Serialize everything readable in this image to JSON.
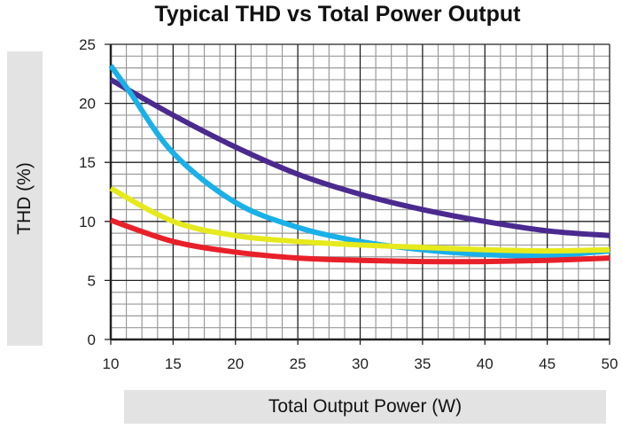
{
  "chart_data": {
    "type": "line",
    "title": "Typical THD vs Total Power Output",
    "xlabel": "Total Output Power (W)",
    "ylabel": "THD (%)",
    "xlim": [
      10,
      50
    ],
    "ylim": [
      0,
      25
    ],
    "xticks": [
      10,
      15,
      20,
      25,
      30,
      35,
      40,
      45,
      50
    ],
    "yticks": [
      0,
      5,
      10,
      15,
      20,
      25
    ],
    "grid": true,
    "legend": "none",
    "series": [
      {
        "color": "#4b2a8f",
        "x": [
          10,
          15,
          20,
          25,
          30,
          35,
          40,
          45,
          50
        ],
        "y": [
          22,
          19,
          16.3,
          14,
          12.3,
          11,
          10,
          9.2,
          8.8
        ]
      },
      {
        "color": "#1ab0e8",
        "x": [
          10,
          11.5,
          15,
          20,
          25,
          30,
          35,
          40,
          45,
          50
        ],
        "y": [
          23.2,
          21,
          15.8,
          11.6,
          9.5,
          8.3,
          7.6,
          7.2,
          7.1,
          7.5
        ]
      },
      {
        "color": "#e6ea1c",
        "x": [
          10,
          15,
          20,
          25,
          30,
          35,
          40,
          45,
          50
        ],
        "y": [
          12.8,
          10,
          8.8,
          8.3,
          8.0,
          7.8,
          7.6,
          7.5,
          7.6
        ]
      },
      {
        "color": "#e8202a",
        "x": [
          10,
          15,
          20,
          25,
          30,
          35,
          40,
          45,
          50
        ],
        "y": [
          10.1,
          8.3,
          7.4,
          6.9,
          6.7,
          6.6,
          6.6,
          6.7,
          6.9
        ]
      }
    ]
  }
}
